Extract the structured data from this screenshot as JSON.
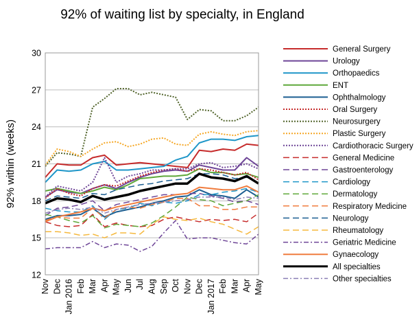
{
  "chart_data": {
    "type": "line",
    "title": "92% of waiting list by specialty, in England",
    "ylabel": "92% within (weeks)",
    "xlabel": "",
    "ylim": [
      12,
      30
    ],
    "yticks": [
      12,
      15,
      18,
      21,
      24,
      27,
      30
    ],
    "grid": "horizontal",
    "legend_position": "right",
    "x": [
      "Nov",
      "Dec",
      "Jan",
      "Feb",
      "Mar",
      "Apr",
      "May",
      "Jun",
      "Jul",
      "Aug",
      "Sep",
      "Oct",
      "Nov",
      "Dec",
      "Jan",
      "Feb",
      "Mar",
      "Apr",
      "May"
    ],
    "x_tick_labels": [
      "Nov",
      "Dec",
      "Jan 2016",
      "Feb",
      "Mar",
      "Apr",
      "May",
      "Jun",
      "Jul",
      "Aug",
      "Sep",
      "Oct",
      "Nov",
      "Dec",
      "Jan 2017",
      "Feb",
      "Mar",
      "Apr",
      "May"
    ],
    "series": [
      {
        "name": "General Surgery",
        "color": "#c62b2b",
        "dash": "solid",
        "width": 2,
        "values": [
          19.9,
          21.0,
          20.9,
          20.9,
          21.5,
          21.7,
          20.9,
          21.0,
          21.1,
          21.0,
          20.9,
          20.8,
          20.7,
          22.1,
          22.0,
          22.2,
          22.1,
          22.6,
          22.5
        ]
      },
      {
        "name": "Urology",
        "color": "#6e4597",
        "dash": "solid",
        "width": 2,
        "values": [
          18.3,
          18.9,
          18.7,
          18.6,
          19.0,
          19.3,
          19.0,
          19.5,
          19.9,
          20.2,
          20.4,
          20.5,
          20.4,
          20.9,
          20.7,
          20.5,
          20.5,
          21.5,
          20.8
        ]
      },
      {
        "name": "Orthopaedics",
        "color": "#1e96c8",
        "dash": "solid",
        "width": 2,
        "values": [
          19.5,
          20.5,
          20.4,
          20.5,
          21.0,
          21.2,
          20.5,
          20.5,
          20.6,
          20.7,
          20.8,
          21.3,
          21.6,
          22.7,
          23.0,
          23.0,
          22.9,
          23.2,
          23.3
        ]
      },
      {
        "name": "ENT",
        "color": "#5fa83a",
        "dash": "solid",
        "width": 2,
        "values": [
          18.8,
          19.0,
          18.8,
          18.6,
          18.8,
          19.1,
          18.9,
          19.3,
          19.8,
          19.9,
          20.0,
          20.0,
          20.1,
          20.6,
          20.3,
          20.3,
          20.1,
          20.2,
          19.9
        ]
      },
      {
        "name": "Ophthalmology",
        "color": "#1b5e91",
        "dash": "solid",
        "width": 2,
        "values": [
          16.5,
          16.8,
          16.8,
          16.9,
          17.4,
          16.7,
          17.1,
          17.3,
          17.5,
          17.8,
          18.0,
          18.3,
          18.4,
          18.9,
          18.5,
          18.4,
          18.2,
          18.9,
          18.3
        ]
      },
      {
        "name": "Oral Surgery",
        "color": "#c62b2b",
        "dash": "dot",
        "width": 2,
        "values": [
          18.2,
          19.0,
          18.6,
          18.4,
          19.0,
          19.3,
          19.2,
          19.6,
          20.0,
          20.3,
          20.5,
          20.6,
          20.4,
          20.6,
          20.5,
          20.3,
          20.1,
          20.3,
          19.7
        ]
      },
      {
        "name": "Neurosurgery",
        "color": "#4f6228",
        "dash": "dot",
        "width": 2,
        "values": [
          20.8,
          21.9,
          21.8,
          21.6,
          25.6,
          26.3,
          27.1,
          27.1,
          26.6,
          26.8,
          26.6,
          26.4,
          24.6,
          25.4,
          25.3,
          24.5,
          24.5,
          24.9,
          25.6
        ]
      },
      {
        "name": "Plastic Surgery",
        "color": "#f5a623",
        "dash": "dot",
        "width": 2,
        "values": [
          20.9,
          22.2,
          22.0,
          21.6,
          22.2,
          22.7,
          22.8,
          22.4,
          22.6,
          23.0,
          23.1,
          22.6,
          22.5,
          23.4,
          23.6,
          23.4,
          23.3,
          23.6,
          23.7
        ]
      },
      {
        "name": "Cardiothoracic Surgery",
        "color": "#6e4597",
        "dash": "dot",
        "width": 2,
        "values": [
          18.3,
          19.2,
          19.0,
          18.8,
          19.5,
          21.5,
          19.5,
          20.0,
          20.2,
          20.5,
          20.5,
          20.6,
          20.6,
          21.0,
          21.1,
          20.7,
          20.8,
          21.0,
          20.6
        ]
      },
      {
        "name": "General Medicine",
        "color": "#c62b2b",
        "dash": "longdash",
        "width": 1.5,
        "values": [
          16.3,
          16.0,
          15.9,
          16.0,
          16.9,
          15.9,
          16.2,
          16.0,
          15.9,
          16.0,
          16.5,
          16.7,
          16.5,
          16.3,
          16.5,
          16.4,
          16.5,
          16.3,
          17.0
        ]
      },
      {
        "name": "Gastroenterology",
        "color": "#6e4597",
        "dash": "longdash",
        "width": 1.5,
        "values": [
          16.8,
          17.4,
          17.5,
          17.7,
          18.0,
          17.2,
          17.7,
          17.9,
          18.1,
          18.3,
          18.5,
          18.5,
          18.6,
          18.6,
          18.4,
          18.2,
          17.9,
          18.0,
          17.7
        ]
      },
      {
        "name": "Cardiology",
        "color": "#1e96c8",
        "dash": "longdash",
        "width": 1.5,
        "values": [
          17.4,
          17.2,
          17.1,
          17.1,
          17.6,
          16.5,
          17.3,
          17.4,
          17.8,
          17.6,
          17.9,
          17.8,
          18.0,
          18.5,
          18.5,
          18.7,
          18.8,
          19.0,
          18.7
        ]
      },
      {
        "name": "Dermatology",
        "color": "#5fa83a",
        "dash": "longdash",
        "width": 1.5,
        "values": [
          16.9,
          16.7,
          16.4,
          16.2,
          16.8,
          15.8,
          16.1,
          16.0,
          15.9,
          16.2,
          16.8,
          17.5,
          18.3,
          18.1,
          18.0,
          17.6,
          17.8,
          18.0,
          18.5
        ]
      },
      {
        "name": "Respiratory Medicine",
        "color": "#f07c3e",
        "dash": "longdash",
        "width": 1.5,
        "values": [
          16.4,
          16.7,
          16.6,
          16.6,
          17.4,
          16.6,
          17.3,
          17.5,
          17.4,
          17.7,
          17.9,
          18.2,
          18.2,
          17.6,
          17.6,
          17.3,
          17.3,
          17.5,
          17.5
        ]
      },
      {
        "name": "Neurology",
        "color": "#1b5e91",
        "dash": "longdash",
        "width": 1.5,
        "values": [
          18.0,
          18.4,
          18.3,
          18.2,
          18.6,
          18.5,
          18.9,
          19.1,
          19.3,
          19.4,
          19.6,
          19.7,
          19.8,
          20.2,
          20.2,
          20.1,
          19.8,
          19.9,
          19.5
        ]
      },
      {
        "name": "Rheumatology",
        "color": "#f5b83d",
        "dash": "longdash",
        "width": 1.5,
        "values": [
          15.5,
          15.5,
          15.4,
          15.2,
          15.3,
          15.0,
          15.4,
          15.4,
          15.3,
          16.1,
          16.7,
          16.5,
          16.4,
          16.6,
          16.3,
          16.1,
          15.7,
          15.3,
          15.9
        ]
      },
      {
        "name": "Geriatric Medicine",
        "color": "#6e4597",
        "dash": "dashdot",
        "width": 1.5,
        "values": [
          14.1,
          14.2,
          14.2,
          14.2,
          14.7,
          14.2,
          14.5,
          14.4,
          13.9,
          14.3,
          15.4,
          16.4,
          14.9,
          15.0,
          15.0,
          14.8,
          14.6,
          14.5,
          15.3
        ]
      },
      {
        "name": "Gynaecology",
        "color": "#f07c3e",
        "dash": "solid",
        "width": 2,
        "values": [
          16.3,
          16.7,
          16.9,
          17.1,
          17.4,
          17.2,
          17.5,
          17.7,
          17.9,
          18.1,
          18.3,
          18.5,
          18.6,
          19.1,
          19.0,
          18.9,
          18.9,
          19.2,
          18.7
        ]
      },
      {
        "name": "All specialties",
        "color": "#000000",
        "dash": "solid",
        "width": 3.5,
        "values": [
          17.8,
          18.2,
          18.1,
          17.9,
          18.4,
          18.1,
          18.3,
          18.5,
          18.8,
          19.0,
          19.2,
          19.4,
          19.4,
          20.2,
          19.9,
          19.8,
          19.6,
          20.0,
          19.4
        ]
      },
      {
        "name": "Other specialties",
        "color": "#8a7fb5",
        "dash": "dashdot",
        "width": 1.5,
        "values": [
          17.0,
          17.3,
          17.4,
          17.3,
          17.5,
          17.0,
          17.3,
          17.5,
          17.7,
          17.8,
          17.9,
          18.0,
          18.1,
          18.3,
          18.3,
          18.3,
          18.1,
          18.3,
          18.2
        ]
      }
    ]
  }
}
